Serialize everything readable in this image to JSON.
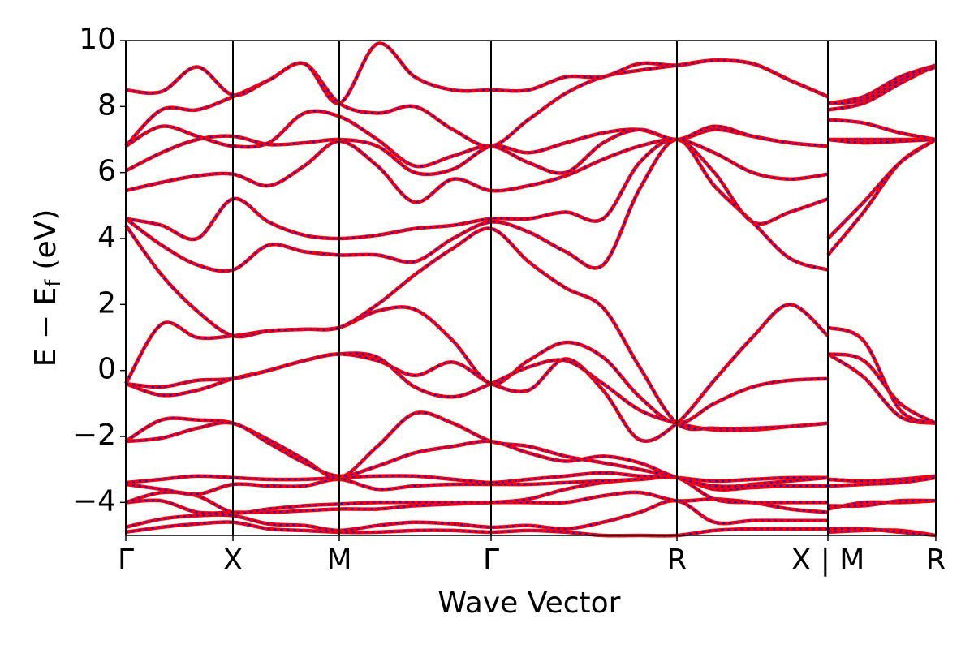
{
  "chart_data": {
    "type": "line",
    "ylabel": [
      "E − E",
      "f",
      "(eV)"
    ],
    "xlabel": "Wave Vector",
    "line_color": "#ff0000",
    "dash_color": "#0000ff",
    "xlim": [
      0,
      9.98
    ],
    "ylim": [
      -5,
      10
    ],
    "xticks": [
      {
        "value": 0,
        "label": "Γ"
      },
      {
        "value": 1.32,
        "label": "X"
      },
      {
        "value": 2.63,
        "label": "M"
      },
      {
        "value": 4.5,
        "label": "Γ"
      },
      {
        "value": 6.79,
        "label": "R"
      },
      {
        "value": 8.65,
        "label": "X | M"
      },
      {
        "value": 9.98,
        "label": "R"
      }
    ],
    "yticks": [
      {
        "value": -4,
        "label": "−4"
      },
      {
        "value": -2,
        "label": "−2"
      },
      0,
      2,
      4,
      6,
      8,
      10
    ],
    "x": [
      0,
      0.44,
      0.88,
      1.32,
      1.76,
      2.2,
      2.63,
      3.1,
      3.56,
      4.03,
      4.5,
      4.96,
      5.42,
      5.88,
      6.33,
      6.79,
      7.25,
      7.72,
      8.18,
      8.65,
      8.65,
      8.65,
      9.09,
      9.54,
      9.98
    ],
    "series": [
      {
        "values": [
          -4.9,
          -4.75,
          -4.65,
          -4.6,
          -4.8,
          -4.85,
          -4.9,
          -4.9,
          -4.85,
          -4.85,
          -4.9,
          -4.85,
          -4.9,
          -5.0,
          -5.0,
          -5.0,
          -4.85,
          -4.8,
          -4.8,
          -4.8,
          null,
          -4.9,
          -4.85,
          -4.85,
          -5.0
        ]
      },
      {
        "values": [
          -4.75,
          -4.5,
          -4.4,
          -4.4,
          -4.65,
          -4.7,
          -4.85,
          -4.7,
          -4.6,
          -4.65,
          -4.75,
          -4.7,
          -4.8,
          -4.6,
          -4.3,
          -3.95,
          -4.6,
          -4.55,
          -4.55,
          -4.55,
          null,
          -4.8,
          -4.8,
          -4.9,
          -5.0
        ]
      },
      {
        "values": [
          -4.0,
          -3.95,
          -4.3,
          -4.3,
          -4.3,
          -4.25,
          -4.2,
          -4.2,
          -4.1,
          -4.05,
          -4.0,
          -4.0,
          -4.0,
          -3.8,
          -3.7,
          -3.95,
          -3.9,
          -4.0,
          -4.2,
          -4.3,
          null,
          -4.2,
          -4.0,
          -4.0,
          -3.95
        ]
      },
      {
        "values": [
          -4.0,
          -3.7,
          -3.8,
          -4.3,
          -4.2,
          -4.1,
          -4.05,
          -4.0,
          -4.0,
          -4.0,
          -4.0,
          -3.9,
          -3.6,
          -3.4,
          -3.3,
          -3.25,
          -3.9,
          -4.0,
          -4.0,
          -4.0,
          null,
          -4.1,
          -4.1,
          -3.95,
          -3.95
        ]
      },
      {
        "values": [
          -3.45,
          -3.6,
          -3.75,
          -3.45,
          -3.5,
          -3.5,
          -3.3,
          -3.6,
          -3.5,
          -3.45,
          -3.45,
          -3.45,
          -3.4,
          -3.35,
          -3.3,
          -3.25,
          -3.6,
          -3.55,
          -3.5,
          -3.5,
          null,
          -3.5,
          -3.45,
          -3.35,
          -3.25
        ]
      },
      {
        "values": [
          -3.4,
          -3.3,
          -3.2,
          -3.25,
          -3.3,
          -3.3,
          -3.25,
          -3.2,
          -3.2,
          -3.3,
          -3.4,
          -3.3,
          -3.2,
          -3.1,
          -3.2,
          -3.25,
          -3.35,
          -3.3,
          -3.25,
          -3.25,
          null,
          -3.3,
          -3.35,
          -3.3,
          -3.2
        ]
      },
      {
        "values": [
          -2.15,
          -1.5,
          -1.5,
          -1.6,
          -2.1,
          -2.7,
          -3.25,
          -2.3,
          -1.3,
          -1.6,
          -2.15,
          -2.3,
          -2.6,
          -2.8,
          -3.0,
          -3.25,
          -3.55,
          -3.45,
          -3.35,
          -3.25,
          null,
          -3.3,
          -3.35,
          -3.3,
          -3.25
        ]
      },
      {
        "values": [
          -2.15,
          -2.05,
          -1.75,
          -1.6,
          -2.2,
          -2.8,
          -3.2,
          -2.9,
          -2.5,
          -2.3,
          -2.15,
          -2.5,
          -2.75,
          -2.6,
          -2.8,
          -3.25,
          -3.5,
          -3.5,
          -3.5,
          -3.5,
          null,
          -3.5,
          -3.45,
          -3.4,
          -3.25
        ]
      },
      {
        "values": [
          -0.4,
          -0.75,
          -0.6,
          -0.25,
          0.0,
          0.3,
          0.5,
          0.3,
          -0.15,
          0.25,
          -0.4,
          -0.6,
          0.35,
          -0.6,
          -2.1,
          -1.6,
          -0.3,
          1.0,
          2.0,
          1.05,
          null,
          0.5,
          -0.2,
          -1.4,
          -1.6
        ]
      },
      {
        "values": [
          -0.4,
          1.4,
          1.0,
          1.05,
          1.2,
          1.25,
          1.3,
          1.8,
          1.85,
          0.9,
          -0.4,
          0.3,
          0.85,
          0.4,
          -0.8,
          -1.6,
          -1.0,
          -0.5,
          -0.3,
          -0.25,
          null,
          1.3,
          0.9,
          -1.2,
          -1.6
        ]
      },
      {
        "values": [
          -0.4,
          -0.5,
          -0.3,
          -0.25,
          0.0,
          0.3,
          0.5,
          0.4,
          -0.5,
          -0.8,
          -0.4,
          0.1,
          0.3,
          -0.4,
          -1.2,
          -1.6,
          -1.8,
          -1.8,
          -1.7,
          -1.6,
          null,
          0.5,
          0.3,
          -1.0,
          -1.6
        ]
      },
      {
        "values": [
          4.4,
          2.9,
          1.8,
          1.05,
          1.2,
          1.25,
          1.3,
          2.0,
          2.9,
          3.7,
          4.3,
          3.3,
          2.5,
          1.9,
          0.1,
          -1.6,
          -1.75,
          -1.75,
          -1.7,
          -1.6,
          null,
          3.5,
          4.8,
          6.3,
          7.0
        ]
      },
      {
        "values": [
          4.6,
          3.8,
          3.2,
          3.05,
          3.8,
          3.6,
          3.5,
          3.5,
          3.3,
          4.0,
          4.5,
          4.2,
          3.6,
          3.2,
          5.5,
          7.0,
          5.6,
          4.5,
          3.4,
          3.05,
          null,
          4.0,
          5.1,
          6.3,
          7.0
        ]
      },
      {
        "values": [
          4.6,
          4.4,
          4.0,
          5.2,
          4.5,
          4.1,
          4.0,
          4.1,
          4.3,
          4.4,
          4.6,
          4.6,
          4.8,
          4.6,
          6.3,
          7.0,
          6.0,
          4.5,
          4.8,
          5.2,
          null,
          7.0,
          7.0,
          7.0,
          7.0
        ]
      },
      {
        "values": [
          5.45,
          5.7,
          5.9,
          5.95,
          5.6,
          6.2,
          6.95,
          6.2,
          5.1,
          5.8,
          5.45,
          5.6,
          5.9,
          6.4,
          6.8,
          7.0,
          6.6,
          6.0,
          5.8,
          5.95,
          null,
          7.6,
          7.5,
          7.2,
          7.0
        ]
      },
      {
        "values": [
          6.05,
          6.6,
          7.0,
          7.1,
          6.85,
          6.9,
          7.0,
          6.8,
          6.0,
          6.1,
          6.8,
          6.6,
          6.9,
          7.2,
          7.3,
          7.0,
          7.3,
          7.1,
          6.9,
          6.8,
          null,
          7.9,
          8.1,
          8.7,
          9.25
        ]
      },
      {
        "values": [
          6.8,
          7.4,
          7.1,
          6.8,
          6.9,
          7.8,
          7.7,
          7.0,
          6.2,
          6.5,
          6.8,
          6.3,
          6.0,
          6.9,
          7.3,
          7.0,
          7.4,
          7.1,
          6.9,
          6.8,
          null,
          7.0,
          6.9,
          6.95,
          7.0
        ]
      },
      {
        "values": [
          6.8,
          7.9,
          7.9,
          8.3,
          8.8,
          9.3,
          8.1,
          7.8,
          8.0,
          7.3,
          6.8,
          7.6,
          8.4,
          8.9,
          9.1,
          9.25,
          9.4,
          9.3,
          8.8,
          8.3,
          null,
          8.1,
          8.3,
          8.9,
          9.25
        ]
      },
      {
        "values": [
          8.5,
          8.45,
          9.2,
          8.35,
          8.8,
          9.3,
          8.1,
          9.9,
          8.9,
          8.5,
          8.5,
          8.5,
          8.9,
          8.9,
          9.3,
          9.25,
          9.4,
          9.3,
          8.8,
          8.3,
          null,
          8.1,
          8.2,
          8.8,
          9.2
        ]
      }
    ]
  }
}
